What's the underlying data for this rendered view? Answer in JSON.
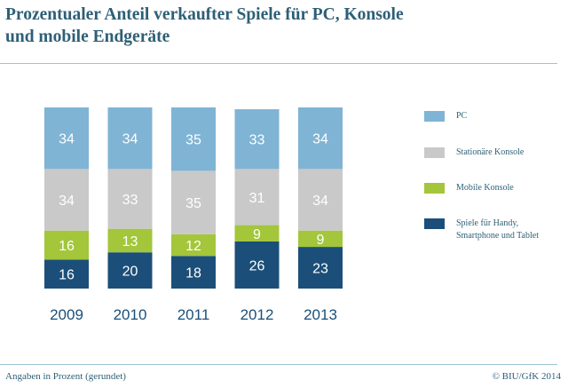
{
  "title": {
    "line1": "Prozentualer Anteil verkaufter Spiele für PC, Konsole",
    "line2": "und mobile Endgeräte"
  },
  "footer": {
    "note": "Angaben in Prozent (gerundet)",
    "source": "© BIU/GfK 2014"
  },
  "chart_data": {
    "type": "bar",
    "stacked": true,
    "categories": [
      "2009",
      "2010",
      "2011",
      "2012",
      "2013"
    ],
    "series": [
      {
        "name": "PC",
        "color": "#7fb4d4",
        "values": [
          34,
          34,
          35,
          33,
          34
        ]
      },
      {
        "name": "Stationäre Konsole",
        "color": "#c9c9c9",
        "values": [
          34,
          33,
          35,
          31,
          34
        ]
      },
      {
        "name": "Mobile Konsole",
        "color": "#a3c63a",
        "values": [
          16,
          13,
          12,
          9,
          9
        ]
      },
      {
        "name": "Spiele für Handy, Smartphone und Tablet",
        "color": "#1b4f79",
        "values": [
          16,
          20,
          18,
          26,
          23
        ]
      }
    ],
    "legend_position": "right",
    "grid": false,
    "ylim": [
      0,
      100
    ]
  }
}
